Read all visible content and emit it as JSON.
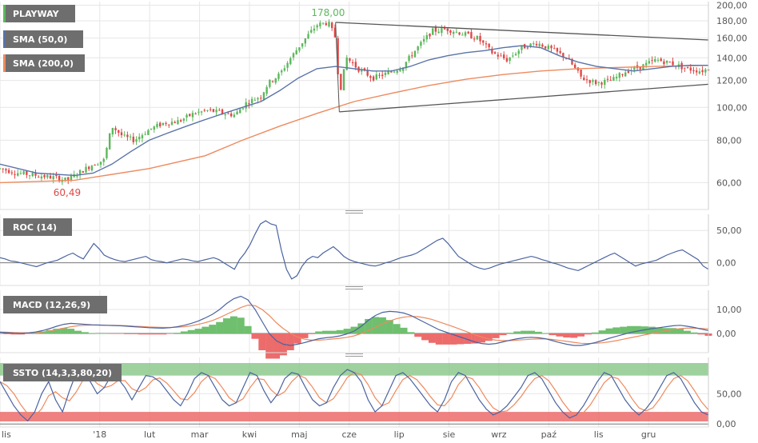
{
  "colors": {
    "tag_bg": "#6e6e6e",
    "up": "#5cb85c",
    "down": "#e04848",
    "sma50": "#5a73a8",
    "sma200": "#ee8a5e",
    "trend": "#555555",
    "grid": "#e6e6e6",
    "histo_up": "#6fbf6f",
    "histo_down": "#ec6b6b",
    "ob_zone": "#86c586",
    "os_zone": "#ec6b6b",
    "roc": "#4a63a0",
    "macd": "#4a63a0",
    "signal": "#ee8a5e",
    "k": "#4a63a0",
    "d": "#ee8a5e"
  },
  "chart_data": [
    {
      "type": "candlestick",
      "panel": "price",
      "title": "",
      "legend": [
        "PLAYWAY",
        "SMA (50,0)",
        "SMA (200,0)"
      ],
      "y_scale": "log",
      "ylim": [
        50,
        205
      ],
      "y_ticks": [
        "200,00",
        "180,00",
        "160,00",
        "140,00",
        "120,00",
        "100,00",
        "80,00",
        "60,00"
      ],
      "y_tick_values": [
        200,
        180,
        160,
        140,
        120,
        100,
        80,
        60
      ],
      "x_labels": [
        "lis",
        "'18",
        "lut",
        "mar",
        "kwi",
        "maj",
        "cze",
        "lip",
        "sie",
        "wrz",
        "paź",
        "lis",
        "gru"
      ],
      "x_label_months": [
        0,
        2,
        3,
        4,
        5,
        6,
        7,
        8,
        9,
        10,
        11,
        12,
        13
      ],
      "x_range_months": [
        0,
        14.2
      ],
      "annotations": [
        {
          "text": "178,00",
          "month": 6.1,
          "value": 178,
          "kind": "high"
        },
        {
          "text": "60,49",
          "month": 1.6,
          "value": 60.49,
          "kind": "low"
        }
      ],
      "close_path": [
        [
          0,
          66
        ],
        [
          0.5,
          64
        ],
        [
          1.0,
          63
        ],
        [
          1.5,
          62
        ],
        [
          1.8,
          61
        ],
        [
          2.1,
          64
        ],
        [
          2.5,
          68
        ],
        [
          2.8,
          70
        ],
        [
          3.0,
          88
        ],
        [
          3.3,
          82
        ],
        [
          3.6,
          80
        ],
        [
          4.0,
          86
        ],
        [
          4.4,
          90
        ],
        [
          4.8,
          91
        ],
        [
          5.2,
          96
        ],
        [
          5.6,
          98
        ],
        [
          6.0,
          96
        ],
        [
          6.3,
          95
        ],
        [
          6.6,
          103
        ],
        [
          7.0,
          108
        ],
        [
          7.2,
          118
        ],
        [
          7.5,
          125
        ],
        [
          7.8,
          140
        ],
        [
          8.2,
          160
        ],
        [
          8.5,
          175
        ],
        [
          8.8,
          178
        ],
        [
          9.0,
          160
        ],
        [
          9.1,
          108
        ],
        [
          9.3,
          140
        ],
        [
          9.6,
          130
        ],
        [
          10.0,
          122
        ],
        [
          10.4,
          126
        ],
        [
          10.8,
          132
        ],
        [
          11.2,
          150
        ],
        [
          11.6,
          168
        ],
        [
          12.0,
          170
        ],
        [
          12.4,
          165
        ],
        [
          12.8,
          160
        ],
        [
          13.2,
          145
        ],
        [
          13.6,
          138
        ],
        [
          14.0,
          150
        ],
        [
          14.4,
          155
        ],
        [
          14.8,
          148
        ],
        [
          15.2,
          140
        ],
        [
          15.6,
          122
        ],
        [
          16.0,
          118
        ],
        [
          16.4,
          120
        ],
        [
          16.8,
          128
        ],
        [
          17.2,
          132
        ],
        [
          17.6,
          138
        ],
        [
          18.0,
          135
        ],
        [
          18.4,
          130
        ],
        [
          18.8,
          128
        ],
        [
          19.0,
          130
        ]
      ],
      "sma50": [
        [
          0,
          68
        ],
        [
          1.0,
          64
        ],
        [
          2.0,
          63
        ],
        [
          2.5,
          64
        ],
        [
          3.0,
          68
        ],
        [
          3.5,
          74
        ],
        [
          4.0,
          80
        ],
        [
          4.5,
          84
        ],
        [
          5.0,
          88
        ],
        [
          5.5,
          92
        ],
        [
          6.0,
          96
        ],
        [
          6.5,
          100
        ],
        [
          7.0,
          104
        ],
        [
          7.5,
          112
        ],
        [
          8.0,
          122
        ],
        [
          8.5,
          130
        ],
        [
          9.0,
          132
        ],
        [
          9.5,
          130
        ],
        [
          10.0,
          128
        ],
        [
          10.5,
          128
        ],
        [
          11.0,
          132
        ],
        [
          11.5,
          138
        ],
        [
          12.0,
          142
        ],
        [
          12.5,
          145
        ],
        [
          13.0,
          147
        ],
        [
          13.5,
          150
        ],
        [
          14.0,
          152
        ],
        [
          14.5,
          150
        ],
        [
          15.0,
          142
        ],
        [
          15.5,
          136
        ],
        [
          16.0,
          132
        ],
        [
          16.5,
          130
        ],
        [
          17.0,
          128
        ],
        [
          17.5,
          130
        ],
        [
          18.0,
          132
        ],
        [
          18.5,
          133
        ],
        [
          19.0,
          133
        ]
      ],
      "sma200": [
        [
          0,
          60
        ],
        [
          2.0,
          61
        ],
        [
          4.0,
          66
        ],
        [
          5.5,
          72
        ],
        [
          6.5,
          80
        ],
        [
          7.5,
          88
        ],
        [
          8.5,
          96
        ],
        [
          9.5,
          104
        ],
        [
          10.5,
          110
        ],
        [
          11.5,
          116
        ],
        [
          12.5,
          121
        ],
        [
          13.5,
          125
        ],
        [
          14.5,
          128
        ],
        [
          15.5,
          130
        ],
        [
          16.5,
          131
        ],
        [
          17.5,
          132
        ],
        [
          19.0,
          133
        ]
      ],
      "trendlines": [
        [
          [
            9.0,
            178
          ],
          [
            19.0,
            158
          ]
        ],
        [
          [
            9.1,
            97
          ],
          [
            19.0,
            117
          ]
        ]
      ]
    },
    {
      "type": "line",
      "panel": "roc",
      "legend": [
        "ROC (14)"
      ],
      "y_ticks": [
        "50,00",
        "0,00"
      ],
      "y_tick_values": [
        50,
        0
      ],
      "ylim": [
        -35,
        75
      ],
      "values": [
        8,
        6,
        3,
        2,
        0,
        -2,
        -4,
        -6,
        -3,
        0,
        2,
        4,
        8,
        12,
        15,
        10,
        6,
        18,
        30,
        22,
        12,
        8,
        5,
        3,
        2,
        4,
        6,
        8,
        10,
        5,
        3,
        2,
        0,
        2,
        4,
        6,
        5,
        3,
        2,
        4,
        6,
        8,
        5,
        0,
        -5,
        -10,
        5,
        15,
        28,
        45,
        60,
        65,
        60,
        58,
        20,
        -10,
        -25,
        -20,
        -5,
        5,
        10,
        8,
        15,
        20,
        25,
        18,
        10,
        5,
        2,
        0,
        -2,
        -4,
        -5,
        -3,
        0,
        2,
        5,
        8,
        10,
        12,
        15,
        20,
        25,
        30,
        35,
        38,
        30,
        20,
        10,
        5,
        0,
        -5,
        -8,
        -10,
        -8,
        -5,
        -2,
        0,
        2,
        4,
        6,
        8,
        10,
        8,
        5,
        3,
        0,
        -2,
        -5,
        -8,
        -10,
        -12,
        -8,
        -4,
        0,
        4,
        8,
        12,
        15,
        10,
        5,
        0,
        -5,
        -2,
        0,
        2,
        4,
        8,
        12,
        15,
        18,
        20,
        15,
        10,
        5,
        -5,
        -10
      ]
    },
    {
      "type": "line",
      "panel": "macd",
      "legend": [
        "MACD (12,26,9)"
      ],
      "y_ticks": [
        "10,00",
        "0,00"
      ],
      "y_tick_values": [
        10,
        0
      ],
      "ylim": [
        -8,
        18
      ],
      "macd": [
        0.5,
        0.3,
        0.1,
        0,
        0.2,
        0.6,
        1.2,
        2,
        3,
        3.8,
        4.2,
        4,
        3.8,
        3.6,
        3.5,
        3.4,
        3.3,
        3.2,
        3,
        2.8,
        2.6,
        2.4,
        2.3,
        2.2,
        2.4,
        2.8,
        3.4,
        4.2,
        5.2,
        6.5,
        8,
        10,
        12.5,
        14.5,
        15.5,
        14,
        10,
        5,
        0,
        -3,
        -4.5,
        -5,
        -4.5,
        -3.8,
        -3,
        -2.2,
        -1.8,
        -1.5,
        -1,
        -0.2,
        1,
        3,
        5.5,
        7.5,
        8.8,
        9.2,
        9,
        8.5,
        7.5,
        6,
        4.5,
        3,
        1.5,
        0.5,
        -0.5,
        -1.5,
        -2.5,
        -3.5,
        -4.2,
        -4.5,
        -4.2,
        -3.5,
        -2.8,
        -2.2,
        -1.8,
        -1.6,
        -1.8,
        -2.2,
        -3,
        -3.8,
        -4.5,
        -5,
        -5,
        -4.5,
        -3.8,
        -3,
        -2,
        -1.2,
        -0.4,
        0.4,
        1,
        1.5,
        2,
        2.4,
        2.8,
        3.2,
        3.4,
        3,
        2.5,
        1.8,
        1.2
      ],
      "signal": [
        0.6,
        0.5,
        0.4,
        0.3,
        0.3,
        0.4,
        0.6,
        1,
        1.6,
        2.2,
        2.8,
        3.2,
        3.4,
        3.5,
        3.5,
        3.4,
        3.4,
        3.3,
        3.2,
        3,
        2.9,
        2.7,
        2.6,
        2.5,
        2.5,
        2.6,
        2.8,
        3.2,
        3.8,
        4.5,
        5.4,
        6.6,
        8,
        9.4,
        10.8,
        11.8,
        11.6,
        10,
        7.5,
        4.5,
        2,
        0,
        -1.5,
        -2.4,
        -2.8,
        -2.8,
        -2.6,
        -2.3,
        -2,
        -1.6,
        -1,
        0,
        1.2,
        2.6,
        4,
        5.2,
        6.2,
        6.8,
        7.1,
        7,
        6.5,
        5.8,
        4.8,
        3.8,
        2.8,
        1.7,
        0.6,
        -0.5,
        -1.5,
        -2.3,
        -2.8,
        -3,
        -3,
        -2.8,
        -2.6,
        -2.4,
        -2.3,
        -2.3,
        -2.5,
        -2.9,
        -3.3,
        -3.7,
        -4.1,
        -4.2,
        -4.1,
        -3.9,
        -3.5,
        -3,
        -2.4,
        -1.8,
        -1.2,
        -0.6,
        0,
        0.6,
        1.2,
        1.6,
        2,
        2.2,
        2.2,
        2.1,
        1.9
      ],
      "histogram_sign_note": "histogram = macd - signal"
    },
    {
      "type": "line",
      "panel": "ssto",
      "legend": [
        "SSTO (14,3,3,80,20)"
      ],
      "y_ticks": [
        "50,00",
        "0,00"
      ],
      "y_tick_values": [
        50,
        0
      ],
      "ylim": [
        -5,
        110
      ],
      "levels": {
        "overbought": 80,
        "oversold": 20
      },
      "k": [
        70,
        50,
        30,
        15,
        5,
        20,
        50,
        70,
        40,
        20,
        55,
        85,
        80,
        70,
        50,
        60,
        80,
        75,
        60,
        40,
        60,
        80,
        78,
        70,
        55,
        40,
        30,
        50,
        75,
        85,
        80,
        60,
        40,
        30,
        35,
        60,
        85,
        80,
        55,
        35,
        50,
        75,
        85,
        82,
        60,
        40,
        30,
        35,
        60,
        80,
        90,
        85,
        70,
        40,
        20,
        30,
        55,
        80,
        85,
        75,
        60,
        45,
        30,
        20,
        40,
        70,
        85,
        80,
        60,
        40,
        25,
        15,
        20,
        30,
        45,
        60,
        80,
        85,
        75,
        55,
        35,
        20,
        10,
        15,
        30,
        50,
        70,
        85,
        80,
        60,
        40,
        25,
        15,
        25,
        40,
        60,
        80,
        85,
        75,
        55,
        35,
        20,
        15
      ]
    }
  ]
}
